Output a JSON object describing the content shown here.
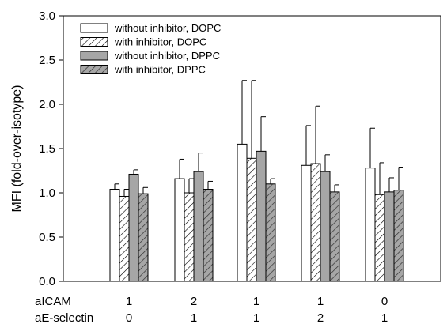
{
  "chart_data": {
    "type": "bar",
    "ylabel": "MFI (fold-over-isotype)",
    "ylim": [
      0,
      3.0
    ],
    "yticks": [
      "0.0",
      "0.5",
      "1.0",
      "1.5",
      "2.0",
      "2.5",
      "3.0"
    ],
    "grid": false,
    "legend_position": "top-left",
    "row_labels": [
      {
        "label": "aICAM",
        "values": [
          "1",
          "2",
          "1",
          "1",
          "0"
        ]
      },
      {
        "label": "aE-selectin",
        "values": [
          "0",
          "1",
          "1",
          "2",
          "1"
        ]
      }
    ],
    "series": [
      {
        "name": "without inhibitor, DOPC",
        "fill": "#ffffff",
        "hatch": false,
        "values": [
          1.04,
          1.16,
          1.55,
          1.31,
          1.28
        ],
        "errors": [
          0.06,
          0.22,
          0.72,
          0.45,
          0.45
        ]
      },
      {
        "name": "with inhibitor, DOPC",
        "fill": "#ffffff",
        "hatch": true,
        "values": [
          0.96,
          1.0,
          1.39,
          1.33,
          0.98
        ],
        "errors": [
          0.08,
          0.16,
          0.88,
          0.65,
          0.36
        ]
      },
      {
        "name": "without inhibitor, DPPC",
        "fill": "#a6a6a6",
        "hatch": false,
        "values": [
          1.21,
          1.24,
          1.47,
          1.24,
          1.01
        ],
        "errors": [
          0.05,
          0.21,
          0.39,
          0.19,
          0.16
        ]
      },
      {
        "name": "with inhibitor, DPPC",
        "fill": "#a6a6a6",
        "hatch": true,
        "values": [
          0.99,
          1.04,
          1.1,
          1.01,
          1.03
        ],
        "errors": [
          0.07,
          0.09,
          0.06,
          0.08,
          0.26
        ]
      }
    ]
  }
}
